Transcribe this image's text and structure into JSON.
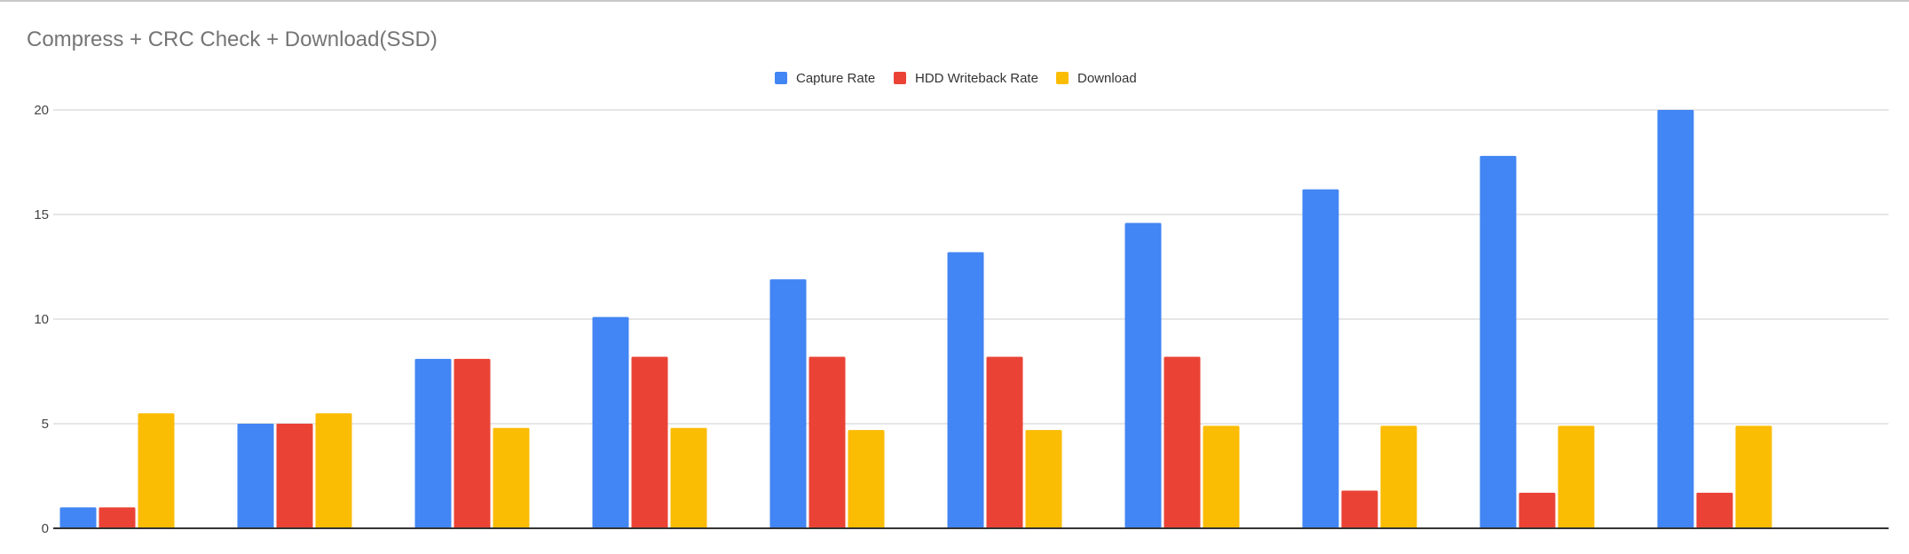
{
  "chart_data": {
    "type": "bar",
    "title": "Compress + CRC Check + Download(SSD)",
    "xlabel": "",
    "ylabel": "",
    "ylim": [
      0,
      20
    ],
    "yticks": [
      0,
      5,
      10,
      15,
      20
    ],
    "categories": [
      "",
      "",
      "",
      "",
      "",
      "",
      "",
      "",
      "",
      ""
    ],
    "grid": true,
    "legend_position": "top-center",
    "series": [
      {
        "name": "Capture Rate",
        "color": "#4285f4",
        "values": [
          1.0,
          5.0,
          8.1,
          10.1,
          11.9,
          13.2,
          14.6,
          16.2,
          17.8,
          20.0
        ]
      },
      {
        "name": "HDD Writeback Rate",
        "color": "#ea4335",
        "values": [
          1.0,
          5.0,
          8.1,
          8.2,
          8.2,
          8.2,
          8.2,
          1.8,
          1.7,
          1.7
        ]
      },
      {
        "name": "Download",
        "color": "#fbbc04",
        "values": [
          5.5,
          5.5,
          4.8,
          4.8,
          4.7,
          4.7,
          4.9,
          4.9,
          4.9,
          4.9
        ]
      }
    ]
  }
}
